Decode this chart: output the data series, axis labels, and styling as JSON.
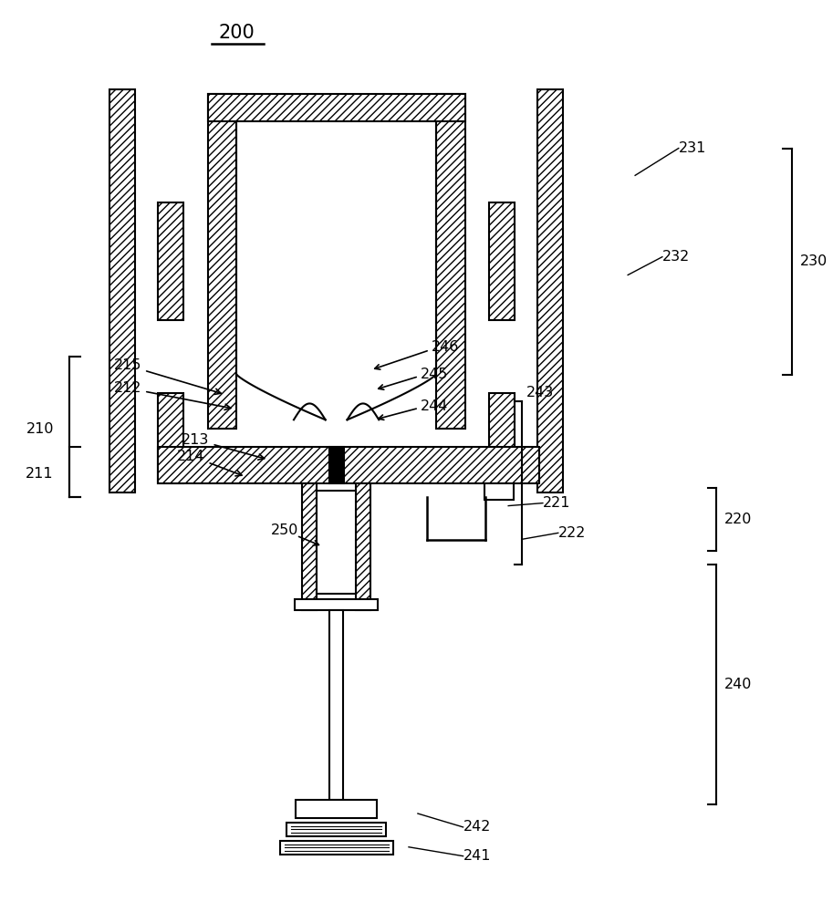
{
  "bg_color": "#ffffff",
  "line_color": "#000000",
  "fig_width": 9.13,
  "fig_height": 10.0,
  "dpi": 100
}
